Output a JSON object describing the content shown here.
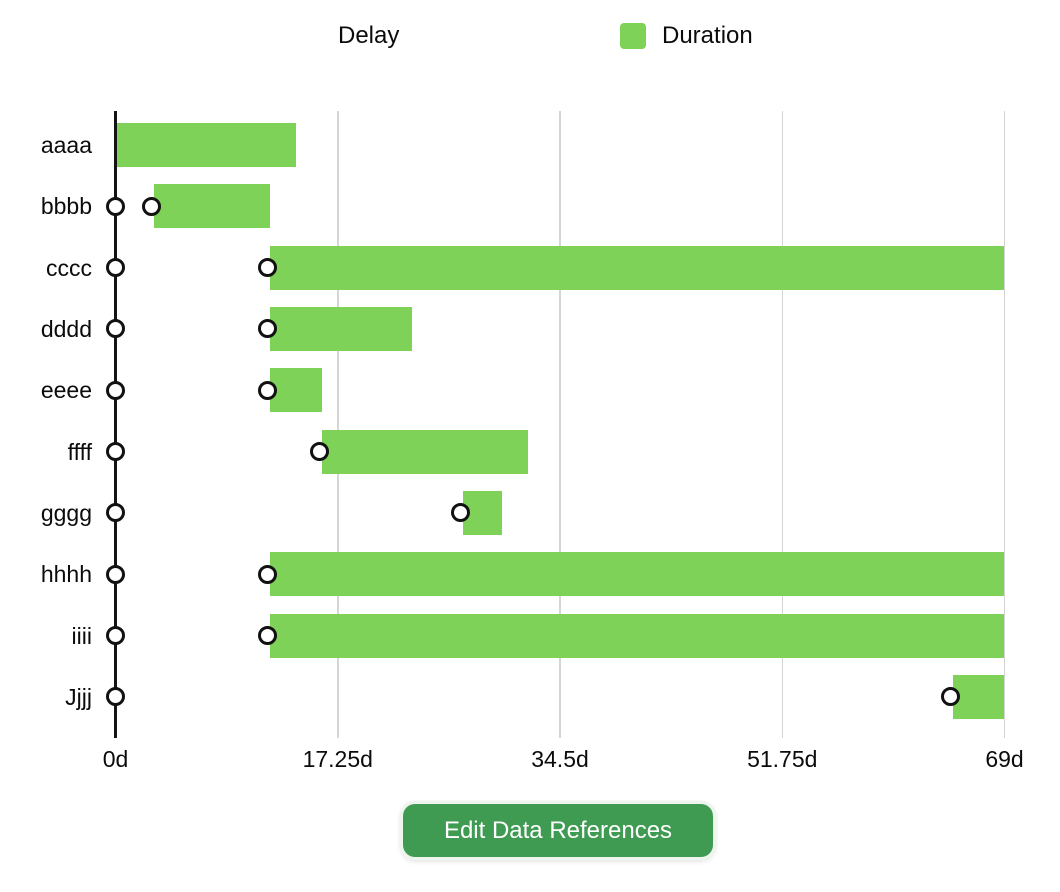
{
  "legend": {
    "delay_label": "Delay",
    "duration_label": "Duration"
  },
  "button": {
    "label": "Edit Data References"
  },
  "colors": {
    "bar_green": "#7dd257",
    "button_green": "#3f9b52",
    "gridline_gray": "#d5d5d5",
    "axis_black": "#141414",
    "marker_stroke": "#111111",
    "marker_fill": "#ffffff"
  },
  "chart_data": {
    "type": "bar",
    "orientation": "horizontal-gantt",
    "title": "",
    "xlabel": "",
    "ylabel": "",
    "categories": [
      "aaaa",
      "bbbb",
      "cccc",
      "dddd",
      "eeee",
      "ffff",
      "gggg",
      "hhhh",
      "iiii",
      "Jjjj"
    ],
    "series": [
      {
        "name": "Delay",
        "type": "scatter",
        "marker": "open-circle",
        "note": "white circle markers drawn at 0d and at the delay value; no markers for empty value",
        "values": [
          null,
          3,
          12,
          12,
          12,
          16,
          27,
          12,
          12,
          65
        ]
      },
      {
        "name": "Duration",
        "type": "bar",
        "starts": [
          0,
          3,
          12,
          12,
          12,
          16,
          27,
          12,
          12,
          65
        ],
        "durations": [
          14,
          9,
          57,
          11,
          4,
          16,
          3,
          57,
          57,
          4
        ]
      }
    ],
    "x_ticks": [
      {
        "value": 0,
        "label": "0d"
      },
      {
        "value": 17.25,
        "label": "17.25d"
      },
      {
        "value": 34.5,
        "label": "34.5d"
      },
      {
        "value": 51.75,
        "label": "51.75d"
      },
      {
        "value": 69,
        "label": "69d"
      }
    ],
    "xlim": [
      0,
      69
    ],
    "grid": "vertical",
    "legend_position": "top"
  }
}
